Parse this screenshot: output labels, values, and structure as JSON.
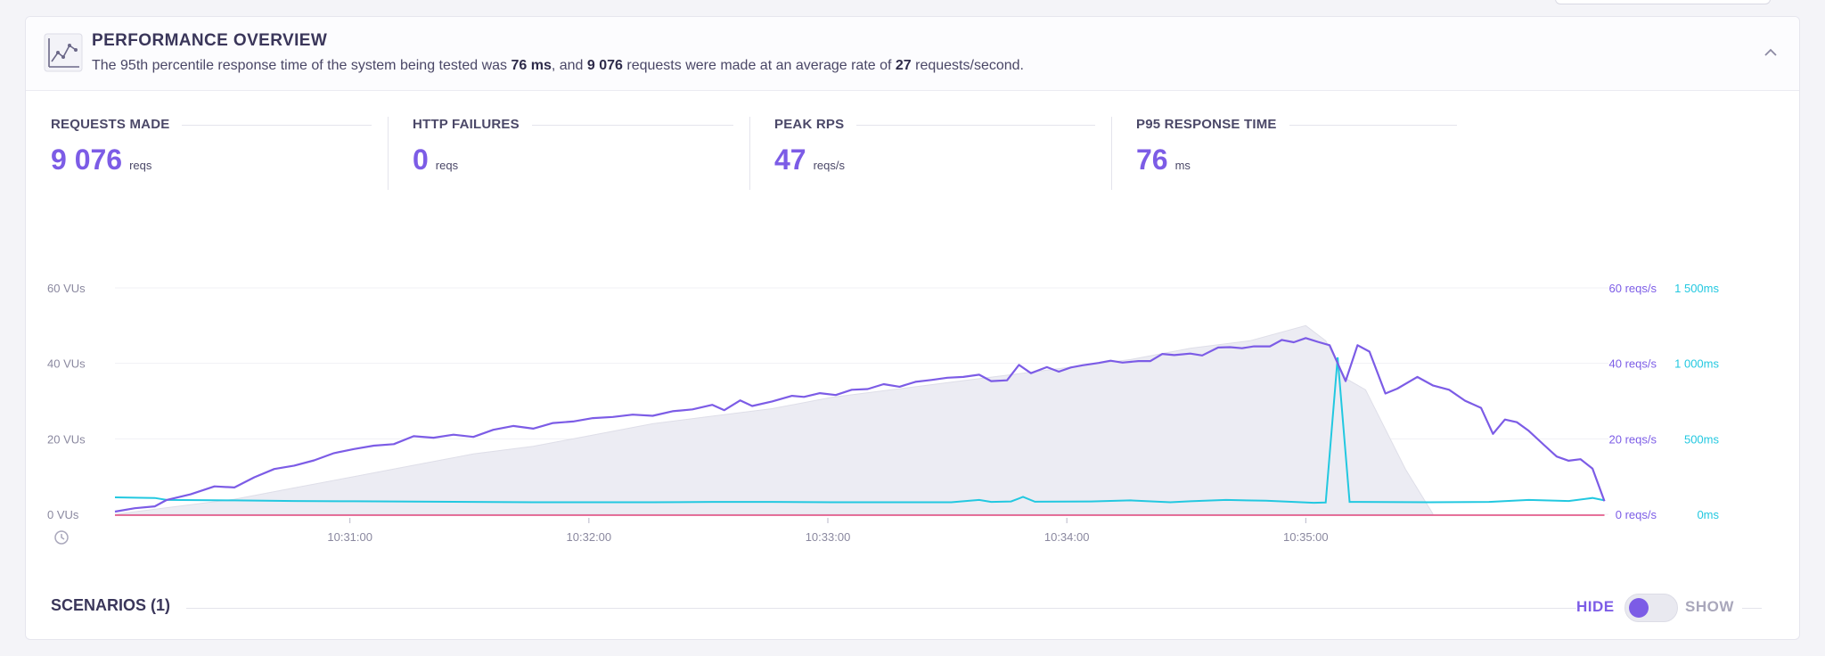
{
  "header": {
    "title": "PERFORMANCE OVERVIEW",
    "sub_prefix": "The 95th percentile response time of the system being tested was ",
    "sub_p95": "76 ms",
    "sub_mid": ", and ",
    "sub_requests": "9 076",
    "sub_mid2": " requests were made at an average rate of ",
    "sub_rate": "27",
    "sub_suffix": " requests/second.",
    "icon": "chart-line-icon",
    "collapse_icon": "chevron-up-icon"
  },
  "stats": [
    {
      "label": "REQUESTS MADE",
      "value": "9 076",
      "unit": "reqs"
    },
    {
      "label": "HTTP FAILURES",
      "value": "0",
      "unit": "reqs"
    },
    {
      "label": "PEAK RPS",
      "value": "47",
      "unit": "reqs/s"
    },
    {
      "label": "P95 RESPONSE TIME",
      "value": "76",
      "unit": "ms"
    }
  ],
  "colors": {
    "accent": "#7c5ce6",
    "vus_area": "#ececf3",
    "rps": "#7c5ce6",
    "response": "#22c8e0",
    "failures": "#e0457b"
  },
  "chart_data": {
    "type": "line",
    "x_ticks": [
      "10:31:00",
      "10:32:00",
      "10:33:00",
      "10:34:00",
      "10:35:00"
    ],
    "x_tick_seconds": [
      60,
      120,
      180,
      240,
      300
    ],
    "x_range_seconds": [
      1,
      332
    ],
    "y_left_ticks": [
      "0 VUs",
      "20 VUs",
      "40 VUs",
      "60 VUs"
    ],
    "y_left_range": [
      0,
      60
    ],
    "y_right_rps_ticks": [
      "0 reqs/s",
      "20 reqs/s",
      "40 reqs/s",
      "60 reqs/s"
    ],
    "y_right_ms_ticks": [
      "0ms",
      "500ms",
      "1 000ms",
      "1 500ms"
    ],
    "y_right_ms_range": [
      0,
      1500
    ],
    "legend": "none",
    "grid": true,
    "series": [
      {
        "kind": "area",
        "points": [
          [
            1,
            0
          ],
          [
            16,
            2
          ],
          [
            31,
            4
          ],
          [
            46,
            7
          ],
          [
            61,
            10
          ],
          [
            76,
            13
          ],
          [
            91,
            16
          ],
          [
            106,
            18
          ],
          [
            121,
            21
          ],
          [
            136,
            24
          ],
          [
            151,
            26
          ],
          [
            166,
            28
          ],
          [
            181,
            31
          ],
          [
            196,
            33
          ],
          [
            211,
            35
          ],
          [
            226,
            37
          ],
          [
            241,
            39
          ],
          [
            256,
            41
          ],
          [
            271,
            44
          ],
          [
            286,
            46
          ],
          [
            300,
            50
          ],
          [
            305,
            46
          ],
          [
            310,
            36
          ],
          [
            315,
            33
          ],
          [
            325,
            12
          ],
          [
            332,
            0
          ]
        ]
      },
      {
        "kind": "rps",
        "points": [
          [
            1,
            0.7
          ],
          [
            6,
            1.6
          ],
          [
            11,
            2.1
          ],
          [
            14,
            3.8
          ],
          [
            20,
            5.3
          ],
          [
            26,
            7.4
          ],
          [
            31,
            7.1
          ],
          [
            36,
            9.8
          ],
          [
            41,
            12
          ],
          [
            46,
            12.9
          ],
          [
            51,
            14.3
          ],
          [
            56,
            16.2
          ],
          [
            61,
            17.3
          ],
          [
            66,
            18.2
          ],
          [
            71,
            18.6
          ],
          [
            76,
            20.7
          ],
          [
            81,
            20.3
          ],
          [
            86,
            21.1
          ],
          [
            91,
            20.5
          ],
          [
            96,
            22.4
          ],
          [
            101,
            23.4
          ],
          [
            106,
            22.7
          ],
          [
            111,
            24.2
          ],
          [
            116,
            24.6
          ],
          [
            121,
            25.5
          ],
          [
            126,
            25.8
          ],
          [
            131,
            26.4
          ],
          [
            136,
            26.1
          ],
          [
            141,
            27.3
          ],
          [
            146,
            27.8
          ],
          [
            151,
            29
          ],
          [
            154,
            27.6
          ],
          [
            158,
            30.2
          ],
          [
            161,
            28.7
          ],
          [
            166,
            29.9
          ],
          [
            171,
            31.4
          ],
          [
            174,
            31.1
          ],
          [
            178,
            32.1
          ],
          [
            182,
            31.6
          ],
          [
            186,
            33
          ],
          [
            190,
            33.2
          ],
          [
            194,
            34.5
          ],
          [
            198,
            33.8
          ],
          [
            202,
            35.1
          ],
          [
            206,
            35.6
          ],
          [
            210,
            36.2
          ],
          [
            214,
            36.4
          ],
          [
            218,
            37
          ],
          [
            221,
            35.3
          ],
          [
            225,
            35.5
          ],
          [
            228,
            39.6
          ],
          [
            231,
            37.4
          ],
          [
            235,
            39
          ],
          [
            238,
            37.8
          ],
          [
            241,
            38.9
          ],
          [
            244,
            39.5
          ],
          [
            248,
            40.1
          ],
          [
            251,
            40.7
          ],
          [
            254,
            40.2
          ],
          [
            258,
            40.6
          ],
          [
            261,
            40.6
          ],
          [
            264,
            42.5
          ],
          [
            267,
            42.2
          ],
          [
            271,
            42.6
          ],
          [
            274,
            42.1
          ],
          [
            278,
            44.2
          ],
          [
            281,
            44.3
          ],
          [
            284,
            44
          ],
          [
            287,
            44.5
          ],
          [
            291,
            44.5
          ],
          [
            294,
            46.2
          ],
          [
            297,
            45.6
          ],
          [
            300,
            46.7
          ],
          [
            303,
            45.7
          ],
          [
            306,
            44.8
          ],
          [
            310,
            35.3
          ],
          [
            313,
            44.8
          ],
          [
            316,
            43.1
          ],
          [
            320,
            32
          ],
          [
            323,
            33.3
          ],
          [
            328,
            36.4
          ],
          [
            332,
            34.1
          ],
          [
            336,
            33
          ],
          [
            340,
            30.1
          ],
          [
            344,
            28.2
          ],
          [
            347,
            21.3
          ],
          [
            350,
            25.1
          ],
          [
            353,
            24.4
          ],
          [
            356,
            22.1
          ],
          [
            360,
            18.2
          ],
          [
            363,
            15.3
          ],
          [
            366,
            14.2
          ],
          [
            369,
            14.6
          ],
          [
            372,
            12.1
          ],
          [
            375,
            3.5
          ]
        ]
      },
      {
        "kind": "response_ms",
        "points": [
          [
            1,
            112
          ],
          [
            11,
            108
          ],
          [
            14,
            95
          ],
          [
            31,
            92
          ],
          [
            46,
            88
          ],
          [
            61,
            86
          ],
          [
            76,
            84
          ],
          [
            91,
            82
          ],
          [
            106,
            80
          ],
          [
            121,
            80
          ],
          [
            136,
            80
          ],
          [
            151,
            82
          ],
          [
            166,
            82
          ],
          [
            181,
            80
          ],
          [
            196,
            80
          ],
          [
            211,
            80
          ],
          [
            218,
            95
          ],
          [
            221,
            82
          ],
          [
            226,
            85
          ],
          [
            229,
            115
          ],
          [
            232,
            83
          ],
          [
            246,
            85
          ],
          [
            256,
            92
          ],
          [
            266,
            80
          ],
          [
            271,
            86
          ],
          [
            280,
            95
          ],
          [
            290,
            90
          ],
          [
            297,
            82
          ],
          [
            302,
            76
          ],
          [
            305,
            78
          ],
          [
            308,
            1040
          ],
          [
            311,
            82
          ],
          [
            331,
            80
          ],
          [
            346,
            82
          ],
          [
            356,
            95
          ],
          [
            366,
            88
          ],
          [
            372,
            108
          ],
          [
            375,
            92
          ]
        ]
      },
      {
        "kind": "failures",
        "points": [
          [
            1,
            0
          ],
          [
            375,
            0
          ]
        ]
      }
    ]
  },
  "scenarios": {
    "label": "SCENARIOS (1)",
    "hide_label": "HIDE",
    "show_label": "SHOW"
  }
}
